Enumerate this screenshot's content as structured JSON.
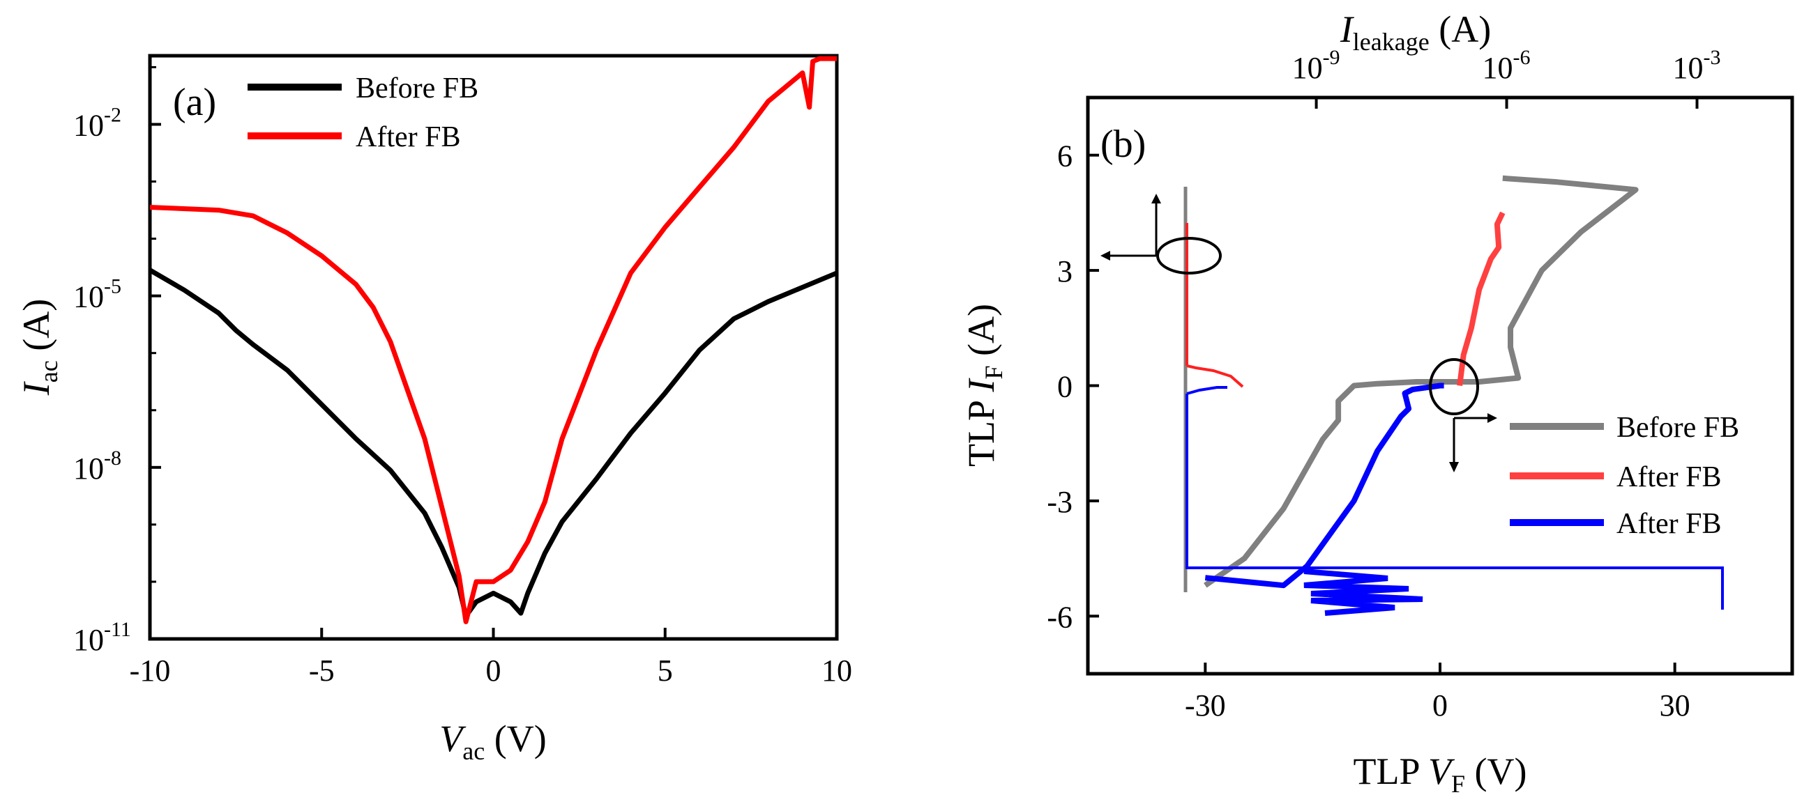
{
  "chart_data": [
    {
      "panel": "(a)",
      "type": "line",
      "xlabel": {
        "main": "V",
        "sub": "ac",
        "unit": " (V)"
      },
      "ylabel": {
        "main": "I",
        "sub": "ac",
        "unit": " (A)"
      },
      "xlim": [
        -10,
        10
      ],
      "ylim_log10": [
        -11,
        -0.8
      ],
      "y_scale": "log",
      "x_ticks": [
        {
          "value": -10,
          "label": "-10"
        },
        {
          "value": -5,
          "label": "-5"
        },
        {
          "value": 0,
          "label": "0"
        },
        {
          "value": 5,
          "label": "5"
        },
        {
          "value": 10,
          "label": "10"
        }
      ],
      "y_ticks": [
        {
          "value": -11,
          "label": "10",
          "exp": "-11"
        },
        {
          "value": -8,
          "label": "10",
          "exp": "-8"
        },
        {
          "value": -5,
          "label": "10",
          "exp": "-5"
        },
        {
          "value": -2,
          "label": "10",
          "exp": "-2"
        }
      ],
      "legend_position": "top-left",
      "series": [
        {
          "name": "Before FB",
          "color": "#000000",
          "x": [
            -10,
            -9,
            -8,
            -7.5,
            -7,
            -6,
            -5,
            -4,
            -3,
            -2,
            -1.5,
            -1,
            -0.8,
            -0.5,
            0,
            0.5,
            0.8,
            1,
            1.5,
            2,
            3,
            4,
            5,
            6,
            7,
            7.5,
            8,
            9,
            10
          ],
          "log10_y": [
            -4.55,
            -4.9,
            -5.3,
            -5.6,
            -5.85,
            -6.3,
            -6.9,
            -7.5,
            -8.05,
            -8.8,
            -9.4,
            -10.1,
            -10.6,
            -10.35,
            -10.2,
            -10.35,
            -10.55,
            -10.2,
            -9.5,
            -8.95,
            -8.2,
            -7.4,
            -6.7,
            -5.95,
            -5.4,
            -5.25,
            -5.1,
            -4.85,
            -4.6
          ]
        },
        {
          "name": "After FB",
          "color": "#ff0000",
          "x": [
            -10,
            -8,
            -7,
            -6,
            -5,
            -4,
            -3.5,
            -3,
            -2,
            -1,
            -0.8,
            -0.5,
            0,
            0.5,
            1,
            1.5,
            2,
            3,
            4,
            5,
            6,
            7,
            8,
            9,
            9.2,
            9.3,
            9.5,
            10
          ],
          "log10_y": [
            -3.45,
            -3.5,
            -3.6,
            -3.9,
            -4.3,
            -4.8,
            -5.2,
            -5.8,
            -7.5,
            -9.9,
            -10.7,
            -10.0,
            -10.0,
            -9.8,
            -9.3,
            -8.6,
            -7.5,
            -5.95,
            -4.6,
            -3.8,
            -3.1,
            -2.4,
            -1.6,
            -1.1,
            -1.7,
            -0.9,
            -0.85,
            -0.85
          ]
        }
      ]
    },
    {
      "panel": "(b)",
      "type": "line",
      "xlabel": {
        "main": "TLP ",
        "ital": "V",
        "sub": "F",
        "unit": " (V)"
      },
      "ylabel": {
        "main": "TLP ",
        "ital": "I",
        "sub": "F",
        "unit": " (A)"
      },
      "top_axis_label": {
        "main": "I",
        "sub": "leakage",
        "unit": " (A)"
      },
      "xlim": [
        -45,
        45
      ],
      "ylim": [
        -7.5,
        7.5
      ],
      "x_ticks": [
        {
          "value": -30,
          "label": "-30"
        },
        {
          "value": 0,
          "label": "0"
        },
        {
          "value": 30,
          "label": "30"
        }
      ],
      "y_ticks": [
        {
          "value": 6,
          "label": "6"
        },
        {
          "value": 3,
          "label": "3"
        },
        {
          "value": 0,
          "label": "0"
        },
        {
          "value": -3,
          "label": "-3"
        },
        {
          "value": -6,
          "label": "-6"
        }
      ],
      "top_ticks": [
        {
          "value": -9,
          "label": "10",
          "exp": "-9"
        },
        {
          "value": -6,
          "label": "10",
          "exp": "-6"
        },
        {
          "value": -3,
          "label": "10",
          "exp": "-3"
        }
      ],
      "top_xlim_log10": [
        -12.6,
        -1.5
      ],
      "legend_position": "bottom-right",
      "series": [
        {
          "name": "Before FB",
          "color": "#808080",
          "axis": "bottom",
          "x": [
            -30,
            -25,
            -20,
            -15,
            -13,
            -13,
            -11,
            -8,
            -3,
            5,
            10,
            9,
            9,
            13,
            18,
            25,
            15,
            8
          ],
          "y": [
            -5.2,
            -4.5,
            -3.2,
            -1.4,
            -0.9,
            -0.4,
            0,
            0.05,
            0.1,
            0.1,
            0.2,
            1,
            1.5,
            3,
            4,
            5.1,
            5.3,
            5.4
          ]
        },
        {
          "name": "After FB",
          "color": "#ff4040",
          "axis": "bottom",
          "x": [
            2.5,
            3,
            4,
            5,
            6.5,
            7.5,
            7.3,
            8
          ],
          "y": [
            0,
            0.8,
            1.5,
            2.5,
            3.3,
            3.6,
            4.2,
            4.5
          ]
        },
        {
          "name": "After FB",
          "color": "#0000ff",
          "axis": "bottom",
          "x": [
            -30,
            -20,
            -17,
            -11,
            -8,
            -5,
            -4,
            -4.5,
            -3.5,
            0,
            0.5
          ],
          "y": [
            -5.0,
            -5.2,
            -4.7,
            -3.0,
            -1.7,
            -0.8,
            -0.6,
            -0.2,
            -0.1,
            0,
            0
          ]
        }
      ]
    }
  ]
}
